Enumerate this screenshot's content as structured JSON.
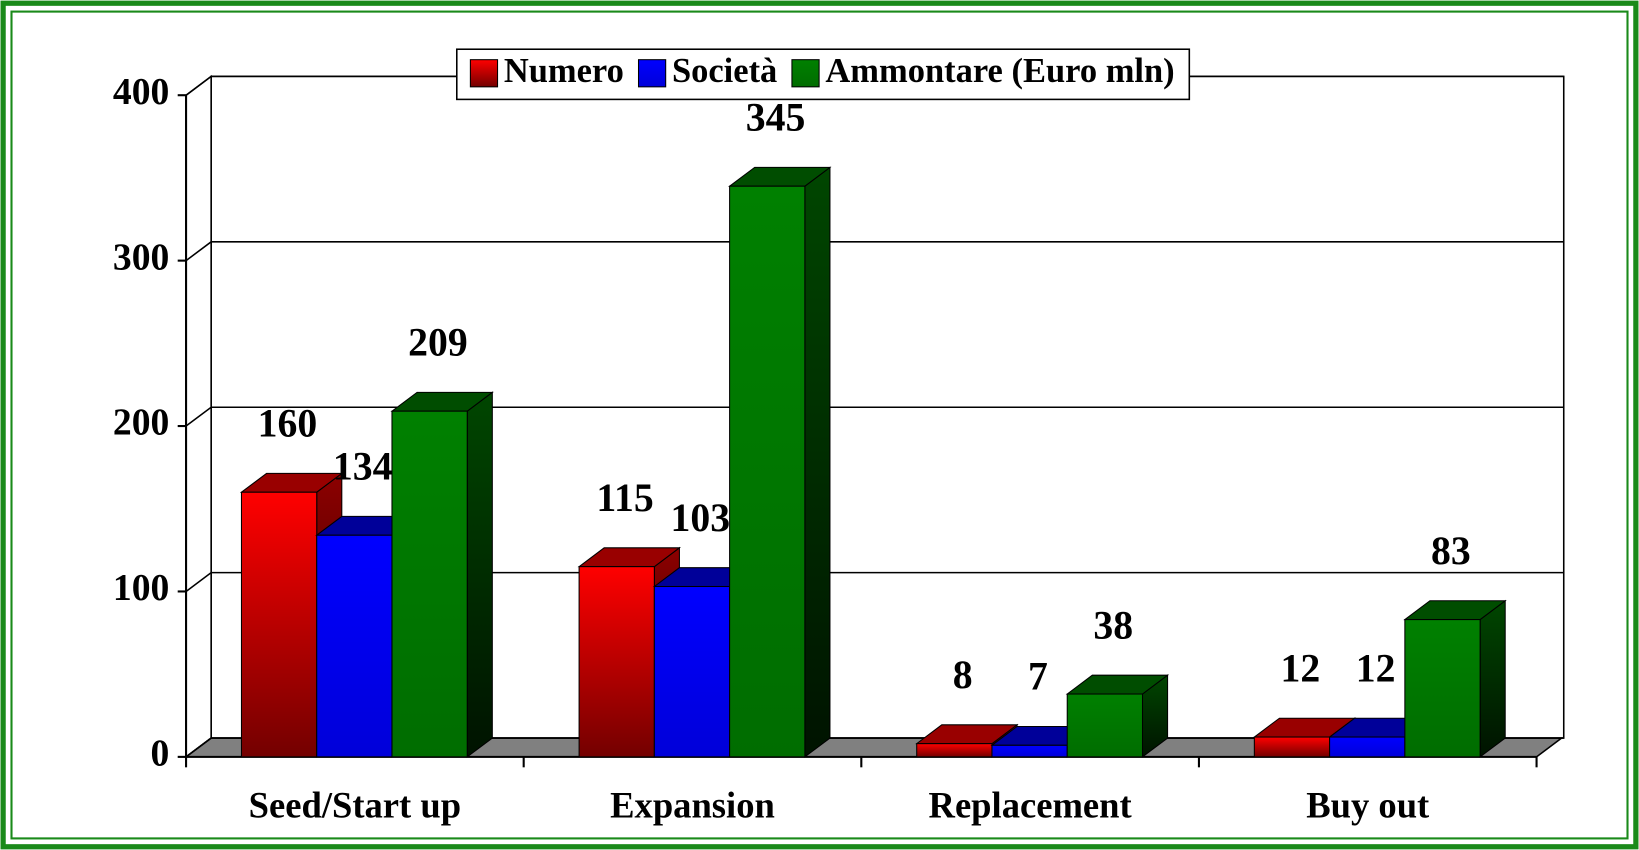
{
  "chart_data": {
    "type": "bar3d",
    "categories": [
      "Seed/Start up",
      "Expansion",
      "Replacement",
      "Buy out"
    ],
    "series": [
      {
        "name": "Numero",
        "color": "#ff0000",
        "values": [
          160,
          115,
          8,
          12
        ]
      },
      {
        "name": "Società",
        "color": "#0000ff",
        "values": [
          134,
          103,
          7,
          12
        ]
      },
      {
        "name": "Ammontare (Euro mln)",
        "color": "#008000",
        "values": [
          209,
          345,
          38,
          83
        ]
      }
    ],
    "ylim": [
      0,
      400
    ],
    "yticks": [
      0,
      100,
      200,
      300,
      400
    ],
    "grid": true,
    "legend": "top"
  }
}
